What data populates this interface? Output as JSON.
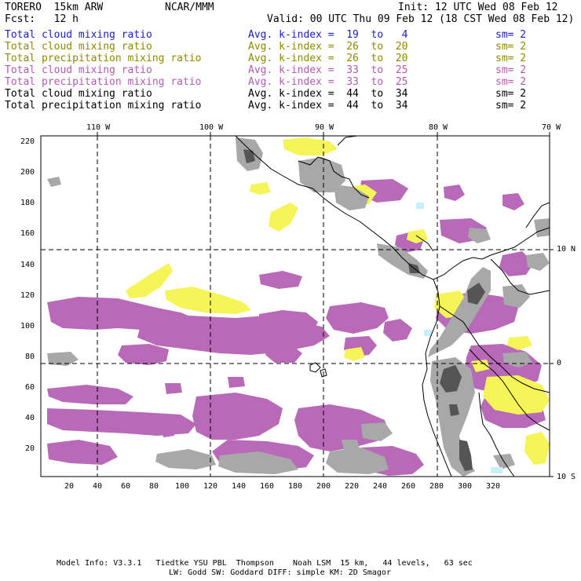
{
  "header": {
    "model": "TORERO  15km ARW",
    "org": "NCAR/MMM",
    "init": "Init: 12 UTC Wed 08 Feb 12",
    "fcst": "Fcst:   12 h",
    "valid": "Valid: 00 UTC Thu 09 Feb 12 (18 CST Wed 08 Feb 12)"
  },
  "legend": [
    {
      "field": "Total cloud mixing ratio",
      "kindex": "Avg. k-index =  19  to   4",
      "sm": "sm= 2",
      "color": "#1c1ccc"
    },
    {
      "field": "Total cloud mixing ratio",
      "kindex": "Avg. k-index =  26  to  20",
      "sm": "sm= 2",
      "color": "#8f8a00"
    },
    {
      "field": "Total precipitation mixing ratio",
      "kindex": "Avg. k-index =  26  to  20",
      "sm": "sm= 2",
      "color": "#8f8a00"
    },
    {
      "field": "Total cloud mixing ratio",
      "kindex": "Avg. k-index =  33  to  25",
      "sm": "sm= 2",
      "color": "#b45ab4"
    },
    {
      "field": "Total precipitation mixing ratio",
      "kindex": "Avg. k-index =  33  to  25",
      "sm": "sm= 2",
      "color": "#b45ab4"
    },
    {
      "field": "Total cloud mixing ratio",
      "kindex": "Avg. k-index =  44  to  34",
      "sm": "sm= 2",
      "color": "#000000"
    },
    {
      "field": "Total precipitation mixing ratio",
      "kindex": "Avg. k-index =  44  to  34",
      "sm": "sm= 2",
      "color": "#000000"
    }
  ],
  "map": {
    "top_labels": [
      "110 W",
      "100 W",
      "90 W",
      "80 W",
      "70 W"
    ],
    "right_labels": [
      "10 N",
      "0",
      "10 S"
    ],
    "left_labels": [
      "220",
      "200",
      "180",
      "160",
      "140",
      "120",
      "100",
      "80",
      "60",
      "40",
      "20"
    ],
    "bottom_labels": [
      "20",
      "40",
      "60",
      "80",
      "100",
      "120",
      "140",
      "160",
      "180",
      "200",
      "220",
      "240",
      "260",
      "280",
      "300",
      "320"
    ],
    "colors": {
      "purple": "#b86ab8",
      "yellow": "#f5f55a",
      "gray": "#a8a8a8",
      "dark": "#555555",
      "cyan": "#c8f0f8"
    }
  },
  "footer": {
    "line1": "Model Info: V3.3.1   Tiedtke YSU PBL  Thompson    Noah LSM  15 km,   44 levels,   63 sec",
    "line2": "LW: Godd SW: Goddard DIFF: simple KM: 2D Smagor"
  }
}
